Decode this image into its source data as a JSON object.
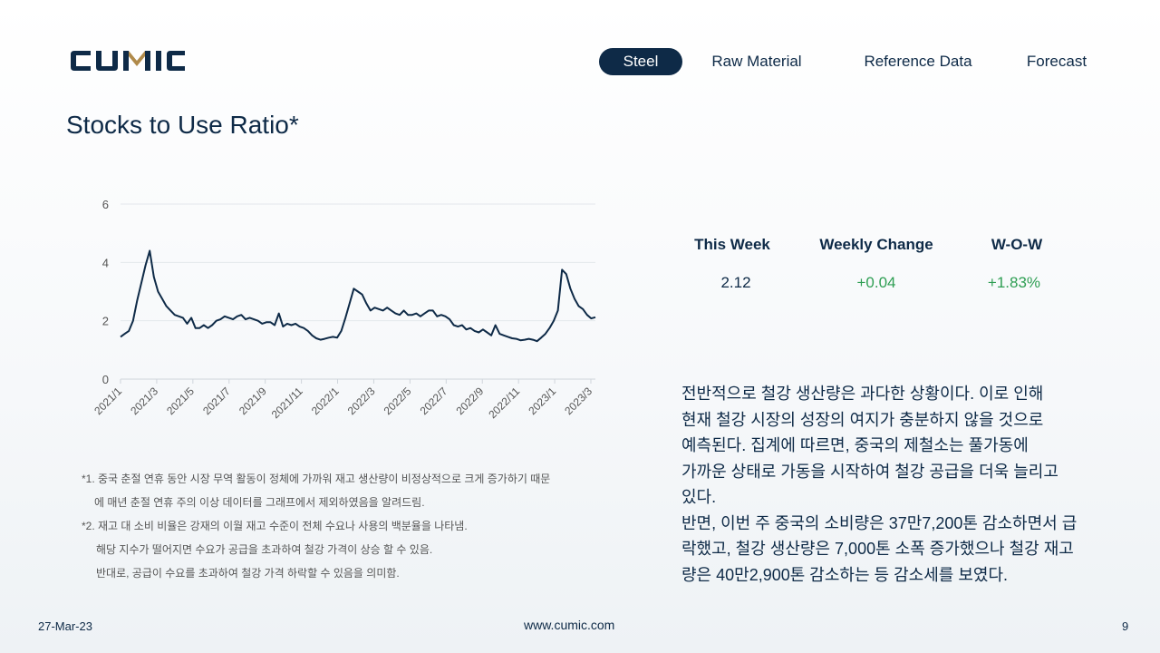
{
  "brand": {
    "logo_text": "CUMIC"
  },
  "nav": {
    "tabs": [
      {
        "label": "Steel",
        "active": true
      },
      {
        "label": "Raw Material",
        "active": false
      },
      {
        "label": "Reference Data",
        "active": false
      },
      {
        "label": "Forecast",
        "active": false
      }
    ]
  },
  "page_title": "Stocks to Use Ratio*",
  "kpi": {
    "headers": [
      "This Week",
      "Weekly Change",
      "W-O-W"
    ],
    "values": [
      "2.12",
      "+0.04",
      "+1.83%"
    ]
  },
  "footnotes": [
    "*1. 중국 춘절 연휴 동안 시장 무역 활동이 정체에 가까워 재고 생산량이 비정상적으로 크게 증가하기 때문",
    "에 매년 춘절 연휴 주의 이상 데이터를 그래프에서 제외하였음을 알려드림.",
    "*2. 재고 대 소비 비율은 강재의 이월 재고 수준이 전체 수요나 사용의 백분율을 나타냄.",
    "해당 지수가 떨어지면 수요가 공급을 초과하여 철강 가격이 상승 할 수 있음.",
    "반대로, 공급이 수요를 초과하여 철강 가격 하락할 수 있음을 의미함."
  ],
  "summary": [
    "전반적으로 철강 생산량은 과다한 상황이다. 이로 인해",
    "현재 철강 시장의 성장의 여지가 충분하지 않을 것으로",
    "예측된다. 집계에 따르면, 중국의 제철소는 풀가동에",
    "가까운 상태로 가동을 시작하여 철강 공급을 더욱 늘리고",
    "있다.",
    "반면, 이번 주 중국의 소비량은 37만7,200톤 감소하면서 급",
    "락했고, 철강 생산량은 7,000톤 소폭 증가했으나 철강 재고",
    "량은 40만2,900톤 감소하는 등 감소세를 보였다."
  ],
  "footer": {
    "date": "27-Mar-23",
    "url": "www.cumic.com",
    "page": "9"
  },
  "colors": {
    "navy": "#0e2a47",
    "positive": "#2e9e53",
    "logo_accent": "#b08a4a",
    "grid": "#e3e7eb"
  },
  "chart_data": {
    "type": "line",
    "title": "",
    "xlabel": "",
    "ylabel": "",
    "ylim": [
      0,
      6
    ],
    "yticks": [
      0,
      2,
      4,
      6
    ],
    "grid": true,
    "xtick_labels": [
      "2021/1",
      "2021/3",
      "2021/5",
      "2021/7",
      "2021/9",
      "2021/11",
      "2022/1",
      "2022/3",
      "2022/5",
      "2022/7",
      "2022/9",
      "2022/11",
      "2023/1",
      "2023/3"
    ],
    "series": [
      {
        "values": [
          1.45,
          1.55,
          1.65,
          2.0,
          2.7,
          3.3,
          3.9,
          4.4,
          3.5,
          3.0,
          2.75,
          2.5,
          2.35,
          2.2,
          2.15,
          2.1,
          1.9,
          2.1,
          1.75,
          1.75,
          1.85,
          1.75,
          1.85,
          2.0,
          2.05,
          2.15,
          2.1,
          2.05,
          2.15,
          2.2,
          2.05,
          2.1,
          2.05,
          2.0,
          1.9,
          1.95,
          1.95,
          1.85,
          2.25,
          1.8,
          1.9,
          1.85,
          1.9,
          1.8,
          1.75,
          1.65,
          1.5,
          1.4,
          1.35,
          1.38,
          1.42,
          1.45,
          1.42,
          1.65,
          2.1,
          2.6,
          3.1,
          3.0,
          2.9,
          2.6,
          2.35,
          2.45,
          2.4,
          2.35,
          2.45,
          2.35,
          2.25,
          2.2,
          2.35,
          2.2,
          2.2,
          2.25,
          2.15,
          2.25,
          2.35,
          2.35,
          2.15,
          2.2,
          2.15,
          2.05,
          1.85,
          1.8,
          1.85,
          1.7,
          1.75,
          1.65,
          1.6,
          1.7,
          1.6,
          1.5,
          1.85,
          1.55,
          1.5,
          1.45,
          1.4,
          1.38,
          1.33,
          1.35,
          1.38,
          1.35,
          1.3,
          1.42,
          1.55,
          1.75,
          2.0,
          2.35,
          3.75,
          3.6,
          3.1,
          2.75,
          2.5,
          2.4,
          2.2,
          2.08,
          2.12
        ]
      }
    ]
  }
}
